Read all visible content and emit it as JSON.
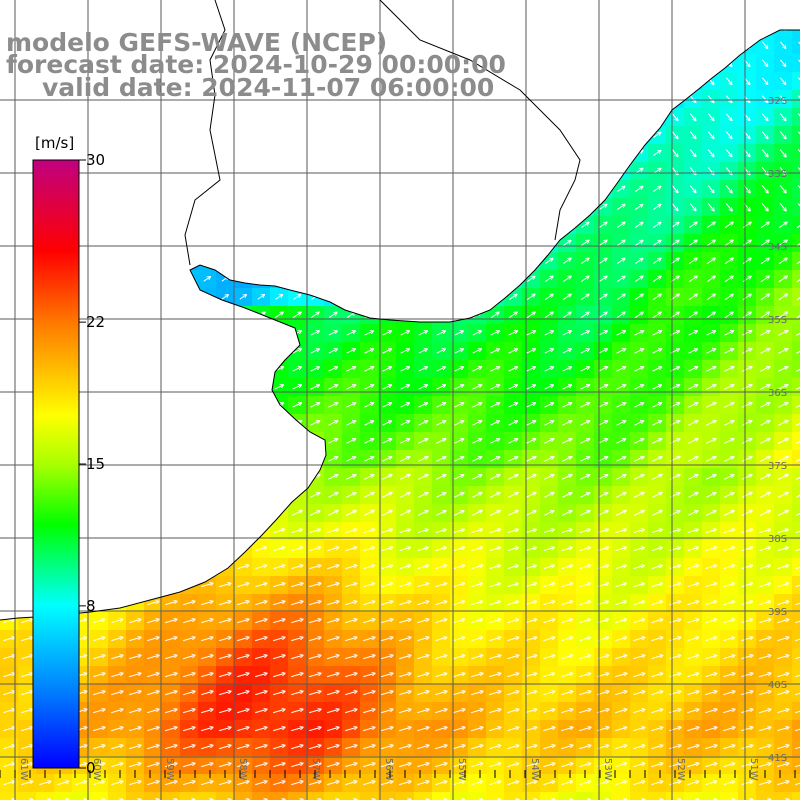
{
  "header": {
    "model_line": "modelo GEFS-WAVE (NCEP)",
    "forecast_line": "forecast date: 2024-10-29 00:00:00",
    "valid_line": "valid date: 2024-11-07 06:00:00"
  },
  "colorbar": {
    "unit": "[m/s]",
    "ticks": [
      {
        "label": "30",
        "value": 30
      },
      {
        "label": "22",
        "value": 22
      },
      {
        "label": "15",
        "value": 15
      },
      {
        "label": "8",
        "value": 8
      },
      {
        "label": "0",
        "value": 0
      }
    ],
    "colors": [
      "#0000ff",
      "#00b4ff",
      "#00ffff",
      "#00ff00",
      "#ffff00",
      "#ffa000",
      "#ff0000",
      "#c00080"
    ]
  },
  "map": {
    "lat_labels": [
      {
        "label": "32S",
        "lat": 32
      },
      {
        "label": "33S",
        "lat": 33
      },
      {
        "label": "34S",
        "lat": 34
      },
      {
        "label": "35S",
        "lat": 35
      },
      {
        "label": "36S",
        "lat": 36
      },
      {
        "label": "37S",
        "lat": 37
      },
      {
        "label": "38S",
        "lat": 38
      },
      {
        "label": "39S",
        "lat": 39
      },
      {
        "label": "40S",
        "lat": 40
      },
      {
        "label": "41S",
        "lat": 41
      }
    ],
    "lon_labels": [
      {
        "label": "61W",
        "lon": 61
      },
      {
        "label": "60W",
        "lon": 60
      },
      {
        "label": "59W",
        "lon": 59
      },
      {
        "label": "58W",
        "lon": 58
      },
      {
        "label": "57W",
        "lon": 57
      },
      {
        "label": "56W",
        "lon": 56
      },
      {
        "label": "55W",
        "lon": 55
      },
      {
        "label": "54W",
        "lon": 54
      },
      {
        "label": "53W",
        "lon": 53
      },
      {
        "label": "52W",
        "lon": 52
      },
      {
        "label": "51W",
        "lon": 51
      }
    ],
    "field": "wind speed (m/s) with white direction arrows",
    "colors": {
      "land": "#ffffff",
      "coast": "#000000",
      "grid": "#5a5a5a",
      "arrow": "#ffffff"
    }
  }
}
